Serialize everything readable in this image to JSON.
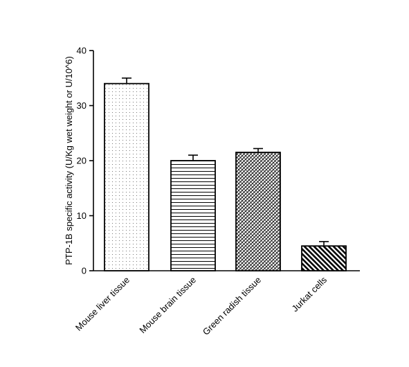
{
  "chart_data": {
    "type": "bar",
    "title": "",
    "xlabel": "",
    "ylabel": "PTP-1B specific activity (U/Kg wet weight or U/10^6)",
    "ylim": [
      0,
      40
    ],
    "yticks": [
      "0",
      "10",
      "20",
      "30",
      "40"
    ],
    "grid": false,
    "categories": [
      "Mouse liver tissue",
      "Mouse brain tissue",
      "Green radish tissue",
      "Jurkat cells"
    ],
    "values": [
      34,
      20,
      21.5,
      4.5
    ],
    "errors": [
      1,
      1,
      0.7,
      0.8
    ],
    "patterns": [
      "dots",
      "horizontal-lines",
      "crosshatch",
      "diagonal-stripes"
    ]
  }
}
